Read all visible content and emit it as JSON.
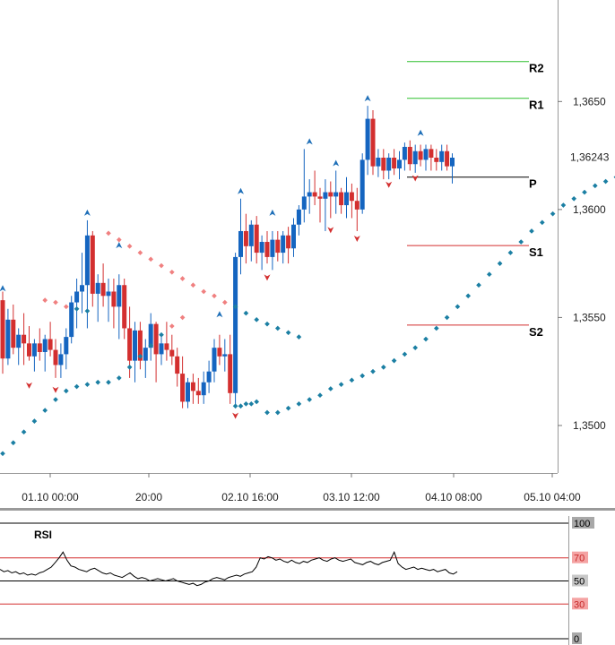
{
  "chart_data": [
    {
      "type": "candlestick",
      "title": "",
      "ylim": [
        1.3478,
        1.3697
      ],
      "y_ticks": [
        "1,3650",
        "1,3600",
        "1,3550",
        "1,3500"
      ],
      "y_tick_values": [
        1.365,
        1.36,
        1.355,
        1.35
      ],
      "x_ticks": [
        "01.10 00:00",
        "20:00",
        "02.10 16:00",
        "03.10 12:00",
        "04.10 08:00",
        "05.10 04:00"
      ],
      "last_price": "1,36243",
      "last_price_value": 1.36243,
      "pivot_levels": [
        {
          "label": "R2",
          "value": 1.36685,
          "color": "#2fbf2f"
        },
        {
          "label": "R1",
          "value": 1.36515,
          "color": "#2fbf2f"
        },
        {
          "label": "P",
          "value": 1.3615,
          "color": "#000000"
        },
        {
          "label": "S1",
          "value": 1.35833,
          "color": "#d32f2f"
        },
        {
          "label": "S2",
          "value": 1.35465,
          "color": "#d32f2f"
        }
      ],
      "candles": [
        [
          1.3558,
          1.3562,
          1.3524,
          1.3531
        ],
        [
          1.3531,
          1.3554,
          1.3528,
          1.3549
        ],
        [
          1.3549,
          1.3556,
          1.3533,
          1.3536
        ],
        [
          1.3536,
          1.3545,
          1.3528,
          1.3542
        ],
        [
          1.3542,
          1.3552,
          1.3528,
          1.3538
        ],
        [
          1.3538,
          1.3546,
          1.353,
          1.3532
        ],
        [
          1.3532,
          1.354,
          1.3525,
          1.3538
        ],
        [
          1.3538,
          1.3545,
          1.353,
          1.3534
        ],
        [
          1.3534,
          1.3542,
          1.3525,
          1.354
        ],
        [
          1.354,
          1.3548,
          1.3532,
          1.3535
        ],
        [
          1.3535,
          1.354,
          1.3522,
          1.3528
        ],
        [
          1.3528,
          1.3538,
          1.3522,
          1.3533
        ],
        [
          1.3533,
          1.3545,
          1.3526,
          1.3541
        ],
        [
          1.3541,
          1.356,
          1.3538,
          1.3557
        ],
        [
          1.3557,
          1.3568,
          1.3545,
          1.3562
        ],
        [
          1.3562,
          1.358,
          1.3552,
          1.3565
        ],
        [
          1.3565,
          1.3595,
          1.3545,
          1.3588
        ],
        [
          1.3588,
          1.359,
          1.3555,
          1.3561
        ],
        [
          1.3561,
          1.357,
          1.3548,
          1.3566
        ],
        [
          1.3566,
          1.3575,
          1.3555,
          1.356
        ],
        [
          1.356,
          1.3568,
          1.3548,
          1.3562
        ],
        [
          1.3562,
          1.3568,
          1.3545,
          1.3555
        ],
        [
          1.3555,
          1.357,
          1.354,
          1.3565
        ],
        [
          1.3565,
          1.3568,
          1.354,
          1.3545
        ],
        [
          1.3545,
          1.3555,
          1.3522,
          1.353
        ],
        [
          1.353,
          1.3548,
          1.352,
          1.3544
        ],
        [
          1.3544,
          1.3548,
          1.3526,
          1.353
        ],
        [
          1.353,
          1.354,
          1.3522,
          1.3536
        ],
        [
          1.3536,
          1.3552,
          1.353,
          1.3547
        ],
        [
          1.3547,
          1.3548,
          1.352,
          1.3533
        ],
        [
          1.3533,
          1.3542,
          1.3528,
          1.3538
        ],
        [
          1.3538,
          1.3548,
          1.353,
          1.3535
        ],
        [
          1.3535,
          1.3542,
          1.3528,
          1.3532
        ],
        [
          1.3532,
          1.3536,
          1.3518,
          1.3524
        ],
        [
          1.3524,
          1.3532,
          1.3508,
          1.3511
        ],
        [
          1.3511,
          1.3522,
          1.3508,
          1.352
        ],
        [
          1.352,
          1.3524,
          1.351,
          1.3516
        ],
        [
          1.3516,
          1.3522,
          1.351,
          1.3514
        ],
        [
          1.3514,
          1.3525,
          1.351,
          1.352
        ],
        [
          1.352,
          1.353,
          1.3515,
          1.3525
        ],
        [
          1.3525,
          1.354,
          1.352,
          1.3536
        ],
        [
          1.3536,
          1.3542,
          1.3528,
          1.3532
        ],
        [
          1.3532,
          1.354,
          1.3525,
          1.3533
        ],
        [
          1.3533,
          1.3542,
          1.351,
          1.3515
        ],
        [
          1.3515,
          1.358,
          1.3508,
          1.3578
        ],
        [
          1.3578,
          1.3605,
          1.357,
          1.359
        ],
        [
          1.359,
          1.3598,
          1.3575,
          1.3583
        ],
        [
          1.3583,
          1.3595,
          1.3576,
          1.3593
        ],
        [
          1.3593,
          1.3597,
          1.3575,
          1.358
        ],
        [
          1.358,
          1.3588,
          1.3572,
          1.3585
        ],
        [
          1.3585,
          1.359,
          1.3575,
          1.3578
        ],
        [
          1.3578,
          1.359,
          1.3572,
          1.3586
        ],
        [
          1.3586,
          1.359,
          1.3576,
          1.358
        ],
        [
          1.358,
          1.359,
          1.3575,
          1.3588
        ],
        [
          1.3588,
          1.3592,
          1.3575,
          1.3582
        ],
        [
          1.3582,
          1.3596,
          1.3578,
          1.3593
        ],
        [
          1.3593,
          1.3602,
          1.3588,
          1.36
        ],
        [
          1.36,
          1.3628,
          1.3594,
          1.3606
        ],
        [
          1.3606,
          1.3614,
          1.3598,
          1.3608
        ],
        [
          1.3608,
          1.3618,
          1.3602,
          1.3606
        ],
        [
          1.3606,
          1.361,
          1.3594,
          1.3605
        ],
        [
          1.3605,
          1.3614,
          1.359,
          1.3608
        ],
        [
          1.3608,
          1.3613,
          1.3596,
          1.3606
        ],
        [
          1.3606,
          1.3618,
          1.3598,
          1.3608
        ],
        [
          1.3608,
          1.361,
          1.3598,
          1.3602
        ],
        [
          1.3602,
          1.3615,
          1.3596,
          1.3608
        ],
        [
          1.3608,
          1.3612,
          1.3596,
          1.3604
        ],
        [
          1.3604,
          1.361,
          1.359,
          1.36
        ],
        [
          1.36,
          1.3626,
          1.3598,
          1.3623
        ],
        [
          1.3623,
          1.3648,
          1.3616,
          1.3642
        ],
        [
          1.3642,
          1.3646,
          1.3616,
          1.362
        ],
        [
          1.362,
          1.3628,
          1.3615,
          1.3624
        ],
        [
          1.3624,
          1.3628,
          1.3614,
          1.3618
        ],
        [
          1.3618,
          1.3626,
          1.3614,
          1.3624
        ],
        [
          1.3624,
          1.3628,
          1.3616,
          1.3619
        ],
        [
          1.3619,
          1.3627,
          1.3614,
          1.3623
        ],
        [
          1.3623,
          1.3631,
          1.3618,
          1.3629
        ],
        [
          1.3629,
          1.3632,
          1.3618,
          1.3621
        ],
        [
          1.3621,
          1.363,
          1.3617,
          1.3627
        ],
        [
          1.3627,
          1.363,
          1.362,
          1.3623
        ],
        [
          1.3623,
          1.363,
          1.3618,
          1.3628
        ],
        [
          1.3628,
          1.363,
          1.3618,
          1.3624
        ],
        [
          1.3624,
          1.3628,
          1.3618,
          1.3622
        ],
        [
          1.3622,
          1.363,
          1.3618,
          1.3627
        ],
        [
          1.3627,
          1.363,
          1.3618,
          1.362
        ],
        [
          1.362,
          1.3626,
          1.3612,
          1.3624
        ]
      ],
      "psar": [
        [
          0,
          1.3487
        ],
        [
          2,
          1.3492
        ],
        [
          4,
          1.3497
        ],
        [
          6,
          1.3502
        ],
        [
          8,
          1.3507
        ],
        [
          10,
          1.3512
        ],
        [
          12,
          1.3516
        ],
        [
          14,
          1.3518
        ],
        [
          16,
          1.3519
        ],
        [
          18,
          1.352
        ],
        [
          20,
          1.352
        ],
        [
          22,
          1.3522
        ],
        [
          24,
          1.3527
        ],
        [
          26,
          1.3532
        ],
        [
          28,
          1.3537
        ],
        [
          30,
          1.3542
        ],
        [
          32,
          1.3546
        ],
        [
          34,
          1.355
        ],
        [
          8,
          1.3558
        ],
        [
          10,
          1.3557
        ],
        [
          12,
          1.3555
        ],
        [
          14,
          1.3554
        ],
        [
          16,
          1.3553
        ],
        [
          20,
          1.3589
        ],
        [
          22,
          1.3586
        ],
        [
          24,
          1.3583
        ],
        [
          26,
          1.358
        ],
        [
          28,
          1.3577
        ],
        [
          30,
          1.3574
        ],
        [
          32,
          1.3571
        ],
        [
          34,
          1.3568
        ],
        [
          36,
          1.3565
        ],
        [
          38,
          1.3562
        ],
        [
          40,
          1.356
        ],
        [
          42,
          1.3557
        ],
        [
          44,
          1.3555
        ],
        [
          46,
          1.3552
        ],
        [
          48,
          1.3549
        ],
        [
          50,
          1.3547
        ],
        [
          52,
          1.3545
        ],
        [
          54,
          1.3543
        ],
        [
          56,
          1.3541
        ],
        [
          44,
          1.3509
        ],
        [
          45,
          1.3509
        ],
        [
          46,
          1.351
        ],
        [
          47,
          1.351
        ],
        [
          48,
          1.3511
        ],
        [
          50,
          1.3506
        ],
        [
          52,
          1.3506
        ],
        [
          54,
          1.3508
        ],
        [
          56,
          1.351
        ],
        [
          58,
          1.3512
        ],
        [
          60,
          1.3514
        ],
        [
          62,
          1.3517
        ],
        [
          64,
          1.3519
        ],
        [
          66,
          1.3521
        ],
        [
          68,
          1.3523
        ],
        [
          70,
          1.3525
        ],
        [
          72,
          1.3527
        ],
        [
          74,
          1.353
        ],
        [
          76,
          1.3533
        ],
        [
          78,
          1.3536
        ],
        [
          80,
          1.354
        ],
        [
          82,
          1.3545
        ],
        [
          84,
          1.355
        ],
        [
          86,
          1.3555
        ],
        [
          88,
          1.356
        ],
        [
          90,
          1.3565
        ],
        [
          92,
          1.357
        ],
        [
          94,
          1.3575
        ],
        [
          96,
          1.358
        ],
        [
          98,
          1.3585
        ],
        [
          100,
          1.359
        ],
        [
          102,
          1.3594
        ],
        [
          104,
          1.3598
        ],
        [
          106,
          1.3602
        ],
        [
          108,
          1.3605
        ],
        [
          110,
          1.3608
        ],
        [
          112,
          1.3611
        ],
        [
          114,
          1.3613
        ],
        [
          116,
          1.3615
        ],
        [
          118,
          1.3617
        ],
        [
          120,
          1.3619
        ],
        [
          122,
          1.362
        ],
        [
          124,
          1.3621
        ],
        [
          126,
          1.3622
        ],
        [
          128,
          1.3623
        ],
        [
          130,
          1.3624
        ],
        [
          132,
          1.3647
        ],
        [
          134,
          1.3646
        ]
      ],
      "fractal_up": [
        1.356,
        1.3595,
        1.358,
        1.3548,
        1.3605,
        1.3595,
        1.3628,
        1.3618,
        1.3648,
        1.3632
      ],
      "fractal_down": [
        1.3522,
        1.352,
        1.3508,
        1.3572,
        1.3594,
        1.359,
        1.3615,
        1.3618
      ]
    },
    {
      "type": "line",
      "title": "RSI",
      "ylim": [
        0,
        100
      ],
      "y_ticks": [
        "100",
        "70",
        "50",
        "30",
        "0"
      ],
      "levels": [
        70,
        50,
        30
      ],
      "values": [
        60,
        58,
        59,
        57,
        58,
        56,
        57,
        55,
        56,
        55,
        57,
        58,
        60,
        62,
        66,
        70,
        75,
        68,
        63,
        62,
        60,
        59,
        58,
        60,
        61,
        59,
        57,
        56,
        57,
        55,
        54,
        53,
        55,
        57,
        54,
        52,
        53,
        52,
        50,
        51,
        52,
        51,
        50,
        51,
        52,
        50,
        49,
        48,
        47,
        48,
        46,
        47,
        49,
        50,
        52,
        53,
        52,
        51,
        53,
        54,
        55,
        54,
        56,
        57,
        58,
        62,
        70,
        69,
        71,
        70,
        68,
        69,
        67,
        66,
        68,
        66,
        65,
        67,
        66,
        68,
        69,
        70,
        68,
        67,
        69,
        70,
        68,
        67,
        68,
        69,
        66,
        65,
        64,
        66,
        67,
        65,
        64,
        66,
        67,
        68,
        75,
        65,
        62,
        60,
        61,
        62,
        60,
        61,
        60,
        59,
        60,
        58,
        59,
        60,
        57,
        56,
        58
      ]
    }
  ]
}
